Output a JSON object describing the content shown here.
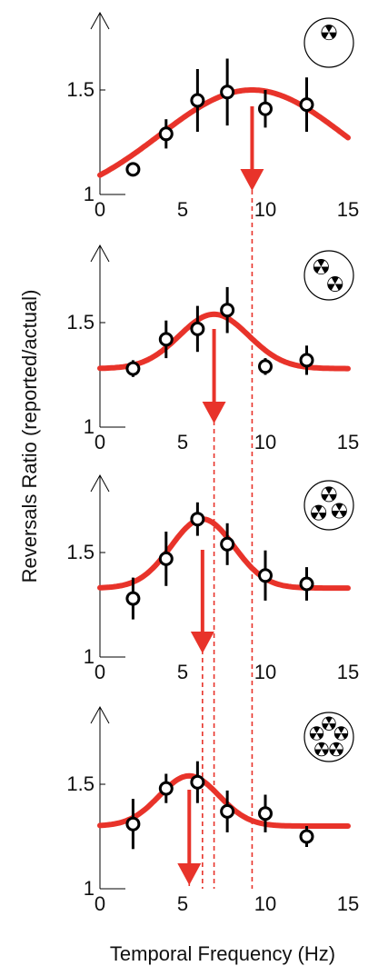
{
  "figure": {
    "ylabel": "Reversals Ratio (reported/actual)",
    "xlabel": "Temporal Frequency (Hz)"
  },
  "colors": {
    "fit": "#e8332a",
    "marker_edge": "#000000",
    "marker_fill": "#ffffff",
    "errorbar": "#000000",
    "axis": "#000000"
  },
  "icons": [
    "one-stimulus-icon",
    "two-stimuli-icon",
    "three-stimuli-icon",
    "five-stimuli-icon"
  ],
  "chart_data": [
    {
      "type": "scatter",
      "stimulus_count": 1,
      "x_tick_labels": [
        "0",
        "5",
        "10",
        "15"
      ],
      "y_tick_labels": [
        "1",
        "1.5"
      ],
      "xlim": [
        0,
        15
      ],
      "ylim": [
        1,
        1.65
      ],
      "points": [
        {
          "x": 2,
          "y": 1.12,
          "err": 0.03
        },
        {
          "x": 4,
          "y": 1.29,
          "err": 0.07
        },
        {
          "x": 5.9,
          "y": 1.45,
          "err": 0.15
        },
        {
          "x": 7.7,
          "y": 1.49,
          "err": 0.16
        },
        {
          "x": 10,
          "y": 1.41,
          "err": 0.09
        },
        {
          "x": 12.5,
          "y": 1.43,
          "err": 0.13
        }
      ],
      "fit": {
        "baseline": 0.95,
        "amplitude": 0.55,
        "center": 9.2,
        "width": 5.6
      },
      "peak_frequency": 9.2
    },
    {
      "type": "scatter",
      "stimulus_count": 2,
      "x_tick_labels": [
        "0",
        "5",
        "10",
        "15"
      ],
      "y_tick_labels": [
        "1",
        "1.5"
      ],
      "xlim": [
        0,
        15
      ],
      "ylim": [
        1,
        1.65
      ],
      "points": [
        {
          "x": 2,
          "y": 1.28,
          "err": 0.04
        },
        {
          "x": 4,
          "y": 1.42,
          "err": 0.09
        },
        {
          "x": 5.9,
          "y": 1.47,
          "err": 0.11
        },
        {
          "x": 7.7,
          "y": 1.56,
          "err": 0.11
        },
        {
          "x": 10,
          "y": 1.29,
          "err": 0.04
        },
        {
          "x": 12.5,
          "y": 1.32,
          "err": 0.07
        }
      ],
      "fit": {
        "baseline": 1.28,
        "amplitude": 0.26,
        "center": 6.9,
        "width": 2.1
      },
      "peak_frequency": 6.9
    },
    {
      "type": "scatter",
      "stimulus_count": 3,
      "x_tick_labels": [
        "0",
        "5",
        "10",
        "15"
      ],
      "y_tick_labels": [
        "1",
        "1.5"
      ],
      "xlim": [
        0,
        15
      ],
      "ylim": [
        1,
        1.65
      ],
      "points": [
        {
          "x": 2,
          "y": 1.28,
          "err": 0.1
        },
        {
          "x": 4,
          "y": 1.47,
          "err": 0.13
        },
        {
          "x": 5.9,
          "y": 1.66,
          "err": 0.08
        },
        {
          "x": 7.7,
          "y": 1.54,
          "err": 0.1
        },
        {
          "x": 10,
          "y": 1.39,
          "err": 0.12
        },
        {
          "x": 12.5,
          "y": 1.35,
          "err": 0.08
        }
      ],
      "fit": {
        "baseline": 1.33,
        "amplitude": 0.33,
        "center": 6.2,
        "width": 1.9
      },
      "peak_frequency": 6.2
    },
    {
      "type": "scatter",
      "stimulus_count": 5,
      "x_tick_labels": [
        "0",
        "5",
        "10",
        "15"
      ],
      "y_tick_labels": [
        "1",
        "1.5"
      ],
      "xlim": [
        0,
        15
      ],
      "ylim": [
        1,
        1.65
      ],
      "points": [
        {
          "x": 2,
          "y": 1.31,
          "err": 0.12
        },
        {
          "x": 4,
          "y": 1.48,
          "err": 0.07
        },
        {
          "x": 5.9,
          "y": 1.51,
          "err": 0.1
        },
        {
          "x": 7.7,
          "y": 1.37,
          "err": 0.1
        },
        {
          "x": 10,
          "y": 1.36,
          "err": 0.09
        },
        {
          "x": 12.5,
          "y": 1.25,
          "err": 0.05
        }
      ],
      "fit": {
        "baseline": 1.3,
        "amplitude": 0.24,
        "center": 5.4,
        "width": 1.8
      },
      "peak_frequency": 5.4
    }
  ]
}
